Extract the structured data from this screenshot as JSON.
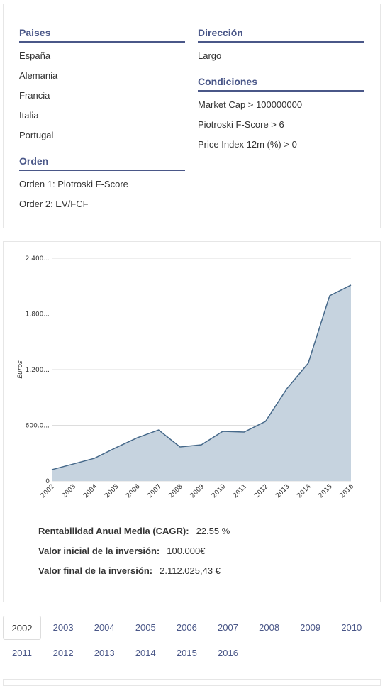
{
  "filters": {
    "paises": {
      "title": "Paises",
      "items": [
        "España",
        "Alemania",
        "Francia",
        "Italia",
        "Portugal"
      ]
    },
    "orden": {
      "title": "Orden",
      "items": [
        "Orden 1: Piotroski F-Score",
        "Order 2: EV/FCF"
      ]
    },
    "direccion": {
      "title": "Dirección",
      "items": [
        "Largo"
      ]
    },
    "condiciones": {
      "title": "Condiciones",
      "items": [
        "Market Cap > 100000000",
        "Piotroski F-Score > 6",
        "Price Index 12m (%) > 0"
      ]
    }
  },
  "chart_data": {
    "type": "area",
    "y_label": "Euros",
    "categories": [
      "2002",
      "2003",
      "2004",
      "2005",
      "2006",
      "2007",
      "2008",
      "2009",
      "2010",
      "2011",
      "2012",
      "2013",
      "2014",
      "2015",
      "2016"
    ],
    "values": [
      122,
      183,
      245,
      359,
      466,
      550,
      367,
      390,
      535,
      527,
      642,
      994,
      1269,
      1995,
      2110
    ],
    "color": "#46698a",
    "fill_color": "#c6d3df",
    "ylim": [
      0,
      2400
    ],
    "yticks": [
      0,
      {
        "value": 600,
        "label": "600.0..."
      },
      {
        "value": 1200,
        "label": "1.200..."
      },
      {
        "value": 1800,
        "label": "1.800..."
      },
      {
        "value": 2400,
        "label": "2.400..."
      }
    ],
    "grid": true
  },
  "stats": [
    {
      "label": "Rentabilidad Anual Media (CAGR):",
      "value": "22.55 %"
    },
    {
      "label": "Valor inicial de la inversión:",
      "value": "100.000€"
    },
    {
      "label": "Valor final de la inversión:",
      "value": "2.112.025,43 €"
    }
  ],
  "year_tabs": {
    "items": [
      "2002",
      "2003",
      "2004",
      "2005",
      "2006",
      "2007",
      "2008",
      "2009",
      "2010",
      "2011",
      "2012",
      "2013",
      "2014",
      "2015",
      "2016"
    ],
    "selected": "2002"
  }
}
